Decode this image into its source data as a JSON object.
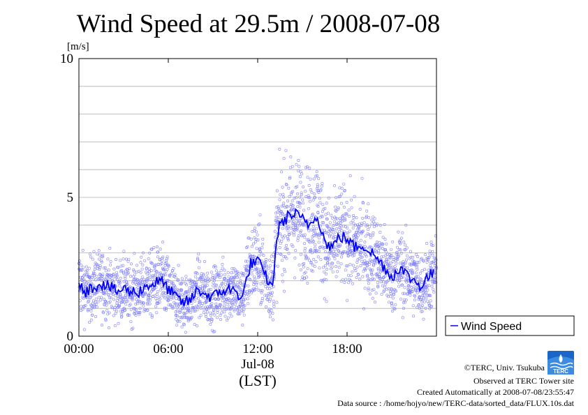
{
  "chart_data": {
    "type": "line",
    "title": "Wind Speed at 29.5m / 2008-07-08",
    "ylabel": "[m/s]",
    "xlabel": "(LST)",
    "date_label": "Jul-08",
    "ylim": [
      0,
      10
    ],
    "xlim_hours": [
      0,
      24
    ],
    "y_ticks": [
      "0",
      "5",
      "10"
    ],
    "x_ticks": [
      {
        "hour": 0,
        "label": "00:00"
      },
      {
        "hour": 6,
        "label": "06:00"
      },
      {
        "hour": 12,
        "label": "12:00"
      },
      {
        "hour": 18,
        "label": "18:00"
      }
    ],
    "grid": "horizontal",
    "legend_position": "right",
    "series": [
      {
        "name": "Wind Speed",
        "color": "#0000ff",
        "x_hours": [
          0,
          0.5,
          1,
          1.5,
          2,
          2.5,
          3,
          3.5,
          4,
          4.5,
          5,
          5.5,
          6,
          6.5,
          7,
          7.5,
          8,
          8.5,
          9,
          9.5,
          10,
          10.5,
          11,
          11.5,
          12,
          12.5,
          13,
          13.25,
          13.5,
          14,
          14.5,
          15,
          15.5,
          16,
          16.5,
          17,
          17.5,
          18,
          18.5,
          19,
          19.5,
          20,
          20.5,
          21,
          21.5,
          22,
          22.5,
          23,
          23.5
        ],
        "values": [
          2.0,
          1.6,
          1.8,
          1.9,
          1.8,
          1.6,
          1.7,
          1.6,
          1.6,
          1.8,
          1.9,
          2.0,
          1.7,
          1.4,
          1.2,
          1.3,
          1.7,
          1.5,
          1.4,
          1.6,
          1.7,
          1.6,
          1.4,
          2.6,
          2.7,
          2.2,
          1.7,
          3.5,
          4.0,
          4.3,
          4.4,
          4.2,
          4.0,
          4.4,
          3.4,
          3.2,
          3.6,
          3.5,
          3.2,
          3.3,
          3.1,
          2.8,
          2.5,
          2.1,
          2.5,
          2.2,
          2.0,
          1.8,
          2.2
        ]
      }
    ],
    "raw_samples": {
      "name": "10-second samples",
      "color": "#8080ff"
    }
  },
  "credits": {
    "copyright": "©TERC, Univ. Tsukuba",
    "site": "Observed at TERC Tower site",
    "created": "Created Automatically at 2008-07-08/23:55:47",
    "source": "Data source : /home/hojyo/new/TERC-data/sorted_data/FLUX.10s.dat",
    "logo_text": "TERC"
  }
}
